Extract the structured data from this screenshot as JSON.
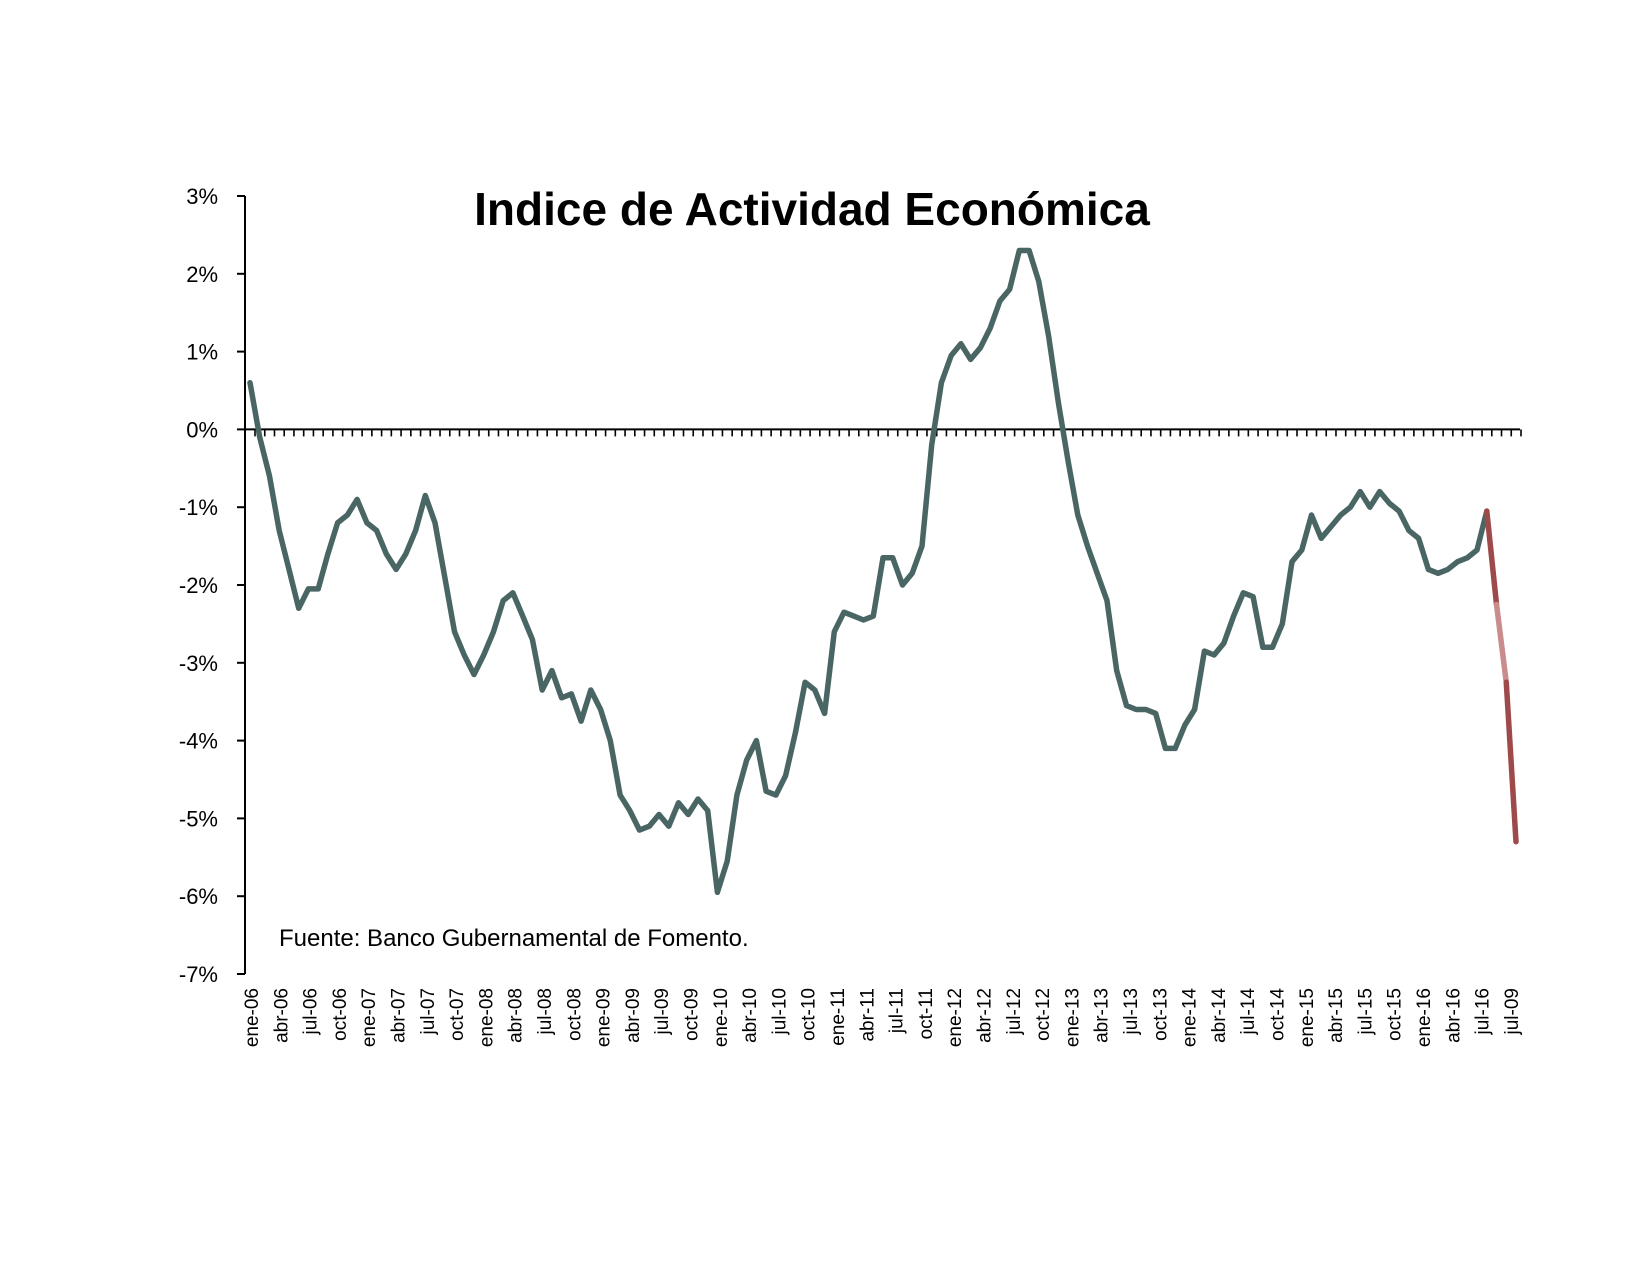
{
  "chart_data": {
    "type": "line",
    "title": "Indice de Actividad Económica",
    "source_note": "Fuente: Banco Gubernamental de Fomento.",
    "ylim": [
      -7,
      3
    ],
    "y_ticks": [
      "3%",
      "2%",
      "1%",
      "0%",
      "-1%",
      "-2%",
      "-3%",
      "-4%",
      "-5%",
      "-6%",
      "-7%"
    ],
    "x_tick_labels": [
      "ene-06",
      "abr-06",
      "jul-06",
      "oct-06",
      "ene-07",
      "abr-07",
      "jul-07",
      "oct-07",
      "ene-08",
      "abr-08",
      "jul-08",
      "oct-08",
      "ene-09",
      "abr-09",
      "jul-09",
      "oct-09",
      "ene-10",
      "abr-10",
      "jul-10",
      "oct-10",
      "ene-11",
      "abr-11",
      "jul-11",
      "oct-11",
      "ene-12",
      "abr-12",
      "jul-12",
      "oct-12",
      "ene-13",
      "abr-13",
      "jul-13",
      "oct-13",
      "ene-14",
      "abr-14",
      "jul-14",
      "oct-14",
      "ene-15",
      "abr-15",
      "jul-15",
      "oct-15",
      "ene-16",
      "abr-16",
      "jul-16",
      "jul-09"
    ],
    "colors": {
      "main": "#4a6664",
      "projection": "#9e4a4a",
      "projection_light": "#c98b8b",
      "axis": "#000000"
    },
    "series": [
      {
        "role": "actual",
        "values": [
          0.6,
          -0.1,
          -0.6,
          -1.3,
          -1.8,
          -2.3,
          -2.05,
          -2.05,
          -1.6,
          -1.2,
          -1.1,
          -0.9,
          -1.2,
          -1.3,
          -1.6,
          -1.8,
          -1.6,
          -1.3,
          -0.85,
          -1.2,
          -1.9,
          -2.6,
          -2.9,
          -3.15,
          -2.9,
          -2.6,
          -2.2,
          -2.1,
          -2.4,
          -2.7,
          -3.35,
          -3.1,
          -3.45,
          -3.4,
          -3.75,
          -3.35,
          -3.6,
          -4.0,
          -4.7,
          -4.9,
          -5.15,
          -5.1,
          -4.95,
          -5.1,
          -4.8,
          -4.95,
          -4.75,
          -4.9,
          -5.95,
          -5.55,
          -4.7,
          -4.25,
          -4.0,
          -4.65,
          -4.7,
          -4.45,
          -3.9,
          -3.25,
          -3.35,
          -3.65,
          -2.6,
          -2.35,
          -2.4,
          -2.45,
          -2.4,
          -1.65,
          -1.65,
          -2.0,
          -1.85,
          -1.5,
          -0.2,
          0.6,
          0.95,
          1.1,
          0.9,
          1.05,
          1.3,
          1.65,
          1.8,
          2.3,
          2.3,
          1.9,
          1.2,
          0.35,
          -0.4,
          -1.1,
          -1.5,
          -1.85,
          -2.2,
          -3.1,
          -3.55,
          -3.6,
          -3.6,
          -3.65,
          -4.1,
          -4.1,
          -3.8,
          -3.6,
          -2.85,
          -2.9,
          -2.75,
          -2.4,
          -2.1,
          -2.15,
          -2.8,
          -2.8,
          -2.5,
          -1.7,
          -1.55,
          -1.1,
          -1.4,
          -1.25,
          -1.1,
          -1.0,
          -0.8,
          -1.0,
          -0.8,
          -0.95,
          -1.05,
          -1.3,
          -1.4,
          -1.8,
          -1.85,
          -1.8,
          -1.7,
          -1.65,
          -1.55,
          -1.05
        ]
      },
      {
        "role": "projection",
        "values": [
          -1.05,
          -2.25,
          -3.25,
          -5.3
        ]
      }
    ]
  }
}
